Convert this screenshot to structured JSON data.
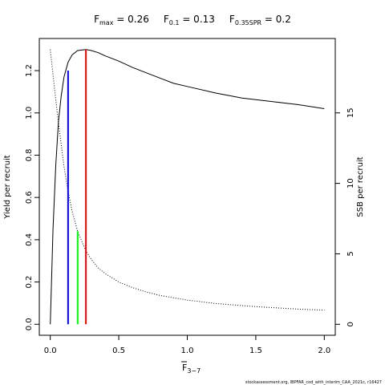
{
  "chart_data": {
    "type": "line",
    "title_parts": [
      {
        "base": "F",
        "sub": "max",
        "rest": " = 0.26"
      },
      {
        "base": "F",
        "sub": "0.1",
        "rest": " = 0.13"
      },
      {
        "base": "F",
        "sub": "0.35SPR",
        "rest": " = 0.2"
      }
    ],
    "xlabel": {
      "base": "F",
      "sub": "3−7",
      "overline": true
    },
    "ylabel_left": "Yield per recruit",
    "ylabel_right": "SSB per recruit",
    "xlim": [
      -0.08,
      2.08
    ],
    "ylim_left": [
      -0.052,
      1.352
    ],
    "ylim_right": [
      -0.78,
      20.28
    ],
    "x_ticks": [
      0,
      0.5,
      1,
      1.5,
      2
    ],
    "x_tick_labels": [
      "0.0",
      "0.5",
      "1.0",
      "1.5",
      "2.0"
    ],
    "y_left_ticks": [
      0,
      0.2,
      0.4,
      0.6,
      0.8,
      1.0,
      1.2
    ],
    "y_left_tick_labels": [
      "0.0",
      "0.2",
      "0.4",
      "0.6",
      "0.8",
      "1.0",
      "1.2"
    ],
    "y_right_ticks": [
      0,
      5,
      10,
      15
    ],
    "y_right_tick_labels": [
      "0",
      "5",
      "10",
      "15"
    ],
    "grid": false,
    "series": [
      {
        "axis": "left",
        "style": "solid",
        "color": "#000000",
        "x": [
          0,
          0.02,
          0.04,
          0.06,
          0.08,
          0.1,
          0.13,
          0.16,
          0.2,
          0.26,
          0.3,
          0.35,
          0.4,
          0.5,
          0.6,
          0.7,
          0.8,
          0.9,
          1.0,
          1.2,
          1.4,
          1.6,
          1.8,
          2.0
        ],
        "y": [
          0.0,
          0.45,
          0.75,
          0.96,
          1.08,
          1.17,
          1.24,
          1.275,
          1.295,
          1.3,
          1.295,
          1.285,
          1.27,
          1.245,
          1.215,
          1.19,
          1.165,
          1.14,
          1.125,
          1.095,
          1.07,
          1.055,
          1.04,
          1.02
        ]
      },
      {
        "axis": "right",
        "style": "dotted",
        "color": "#000000",
        "x": [
          0,
          0.03,
          0.06,
          0.1,
          0.13,
          0.16,
          0.2,
          0.26,
          0.3,
          0.35,
          0.4,
          0.5,
          0.6,
          0.7,
          0.8,
          1.0,
          1.2,
          1.5,
          1.8,
          2.0
        ],
        "y": [
          19.5,
          16.8,
          14.3,
          11.2,
          9.4,
          8.0,
          6.6,
          5.2,
          4.6,
          4.0,
          3.6,
          3.0,
          2.6,
          2.3,
          2.05,
          1.72,
          1.48,
          1.25,
          1.08,
          1.0
        ]
      }
    ],
    "reference_lines": [
      {
        "x": 0.13,
        "y_top": 1.2,
        "color": "#0000ff"
      },
      {
        "x": 0.2,
        "y_top": 0.44,
        "color": "#00ff00"
      },
      {
        "x": 0.26,
        "y_top": 1.3,
        "color": "#ff0000"
      }
    ]
  },
  "footer_note": "stockassessment.org, IBPFAR_cod_with_interim_CAA_2021c, r16427"
}
